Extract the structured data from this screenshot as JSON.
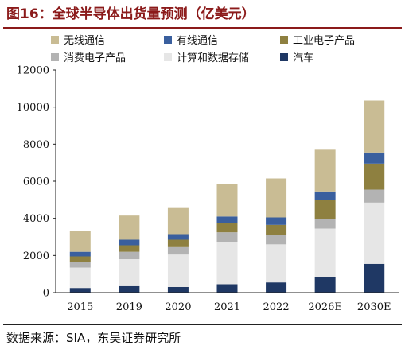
{
  "figure": {
    "title": "图16：全球半导体出货量预测（亿美元）",
    "source": "数据来源：SIA，东吴证券研究所"
  },
  "chart_data": {
    "type": "bar",
    "stacked": true,
    "categories": [
      "2015",
      "2019",
      "2020",
      "2021",
      "2022",
      "2026E",
      "2030E"
    ],
    "ylim": [
      0,
      12000
    ],
    "yticks": [
      "0",
      "2000",
      "4000",
      "6000",
      "8000",
      "10000",
      "12000"
    ],
    "legend_position": "top",
    "grid": false,
    "series": [
      {
        "name": "汽车",
        "color": "#1f3864",
        "values": [
          250,
          350,
          300,
          450,
          550,
          850,
          1550
        ]
      },
      {
        "name": "计算和数据存储",
        "color": "#e6e6e6",
        "values": [
          1100,
          1450,
          1750,
          2250,
          2050,
          2600,
          3300
        ]
      },
      {
        "name": "消费电子产品",
        "color": "#b3b3b3",
        "values": [
          300,
          400,
          400,
          550,
          500,
          500,
          700
        ]
      },
      {
        "name": "工业电子产品",
        "color": "#8e8040",
        "values": [
          300,
          350,
          400,
          500,
          550,
          1050,
          1400
        ]
      },
      {
        "name": "有线通信",
        "color": "#3a5f9e",
        "values": [
          250,
          300,
          300,
          350,
          400,
          450,
          600
        ]
      },
      {
        "name": "无线通信",
        "color": "#c9bc94",
        "values": [
          1100,
          1300,
          1450,
          1750,
          2100,
          2250,
          2800
        ]
      }
    ],
    "legend_order": [
      "无线通信",
      "有线通信",
      "工业电子产品",
      "消费电子产品",
      "计算和数据存储",
      "汽车"
    ]
  }
}
